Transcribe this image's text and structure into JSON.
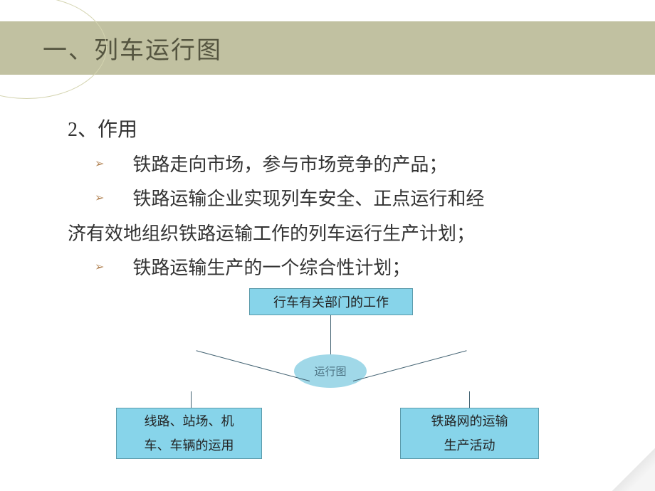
{
  "header": {
    "title": "一、列车运行图",
    "bar_color": "#c1c1a1",
    "title_color": "#555540",
    "ellipse_border": "#d4d4b0"
  },
  "content": {
    "section": "2、作用",
    "bullets": [
      "铁路走向市场，参与市场竞争的产品；",
      "铁路运输企业实现列车安全、正点运行和经济有效地组织铁路运输工作的列车运行生产计划；",
      "铁路运输生产的一个综合性计划；"
    ],
    "bullet_marker_color": "#b08050",
    "text_color": "#333333",
    "font_size": 26
  },
  "diagram": {
    "top_box": {
      "label": "行车有关部门的工作",
      "bg": "#87d4ea",
      "border": "#5a9aaa"
    },
    "center_ellipse": {
      "label": "运行图",
      "bg": "#a0d8e8",
      "text_color": "#4a7080"
    },
    "left_box": {
      "line1": "线路、站场、机",
      "line2": "车、车辆的运用",
      "bg": "#87d4ea",
      "border": "#5a9aaa"
    },
    "right_box": {
      "line1": "铁路网的运输",
      "line2": "生产活动",
      "bg": "#87d4ea",
      "border": "#5a9aaa"
    },
    "connector_color": "#406070"
  }
}
